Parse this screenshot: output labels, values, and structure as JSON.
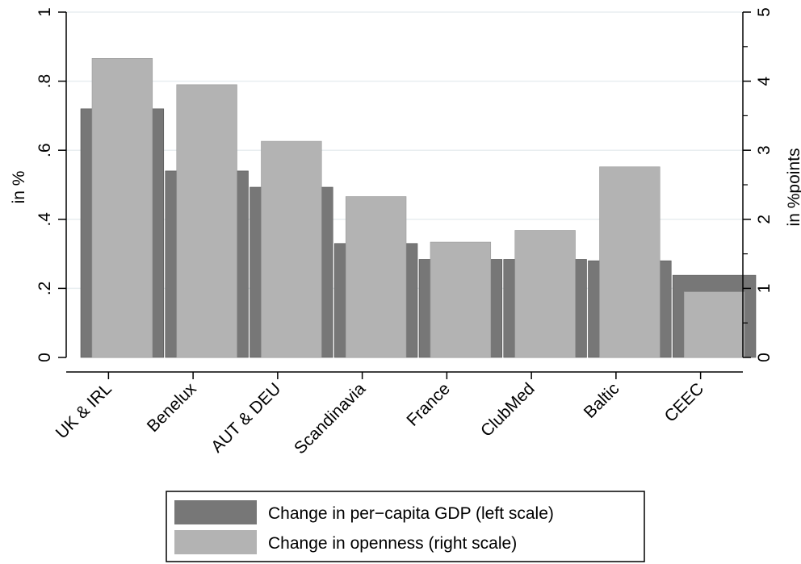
{
  "chart_data": {
    "type": "bar",
    "categories": [
      "UK & IRL",
      "Benelux",
      "AUT & DEU",
      "Scandinavia",
      "France",
      "ClubMed",
      "Baltic",
      "CEEC"
    ],
    "series": [
      {
        "name": "Change in per−capita GDP (left scale)",
        "axis": "left",
        "color": "#777777",
        "values": [
          0.72,
          0.54,
          0.493,
          0.33,
          0.284,
          0.284,
          0.28,
          0.238
        ]
      },
      {
        "name": "Change in openness (right scale)",
        "axis": "right",
        "color": "#b3b3b3",
        "values": [
          4.33,
          3.95,
          3.13,
          2.33,
          1.67,
          1.84,
          2.76,
          0.95
        ]
      }
    ],
    "ylabel": "in %",
    "y2label": "in %points",
    "ylim": [
      0,
      1
    ],
    "y2lim": [
      0,
      5
    ],
    "yticks": [
      {
        "value": 0,
        "label": "0"
      },
      {
        "value": 0.2,
        "label": ".2"
      },
      {
        "value": 0.4,
        "label": ".4"
      },
      {
        "value": 0.6,
        "label": ".6"
      },
      {
        "value": 0.8,
        "label": ".8"
      },
      {
        "value": 1,
        "label": "1"
      }
    ],
    "y2ticks": [
      {
        "value": 0,
        "label": "0"
      },
      {
        "value": 1,
        "label": "1"
      },
      {
        "value": 2,
        "label": "2"
      },
      {
        "value": 3,
        "label": "3"
      },
      {
        "value": 4,
        "label": "4"
      },
      {
        "value": 5,
        "label": "5"
      }
    ],
    "grid": true,
    "legend_position": "bottom"
  }
}
